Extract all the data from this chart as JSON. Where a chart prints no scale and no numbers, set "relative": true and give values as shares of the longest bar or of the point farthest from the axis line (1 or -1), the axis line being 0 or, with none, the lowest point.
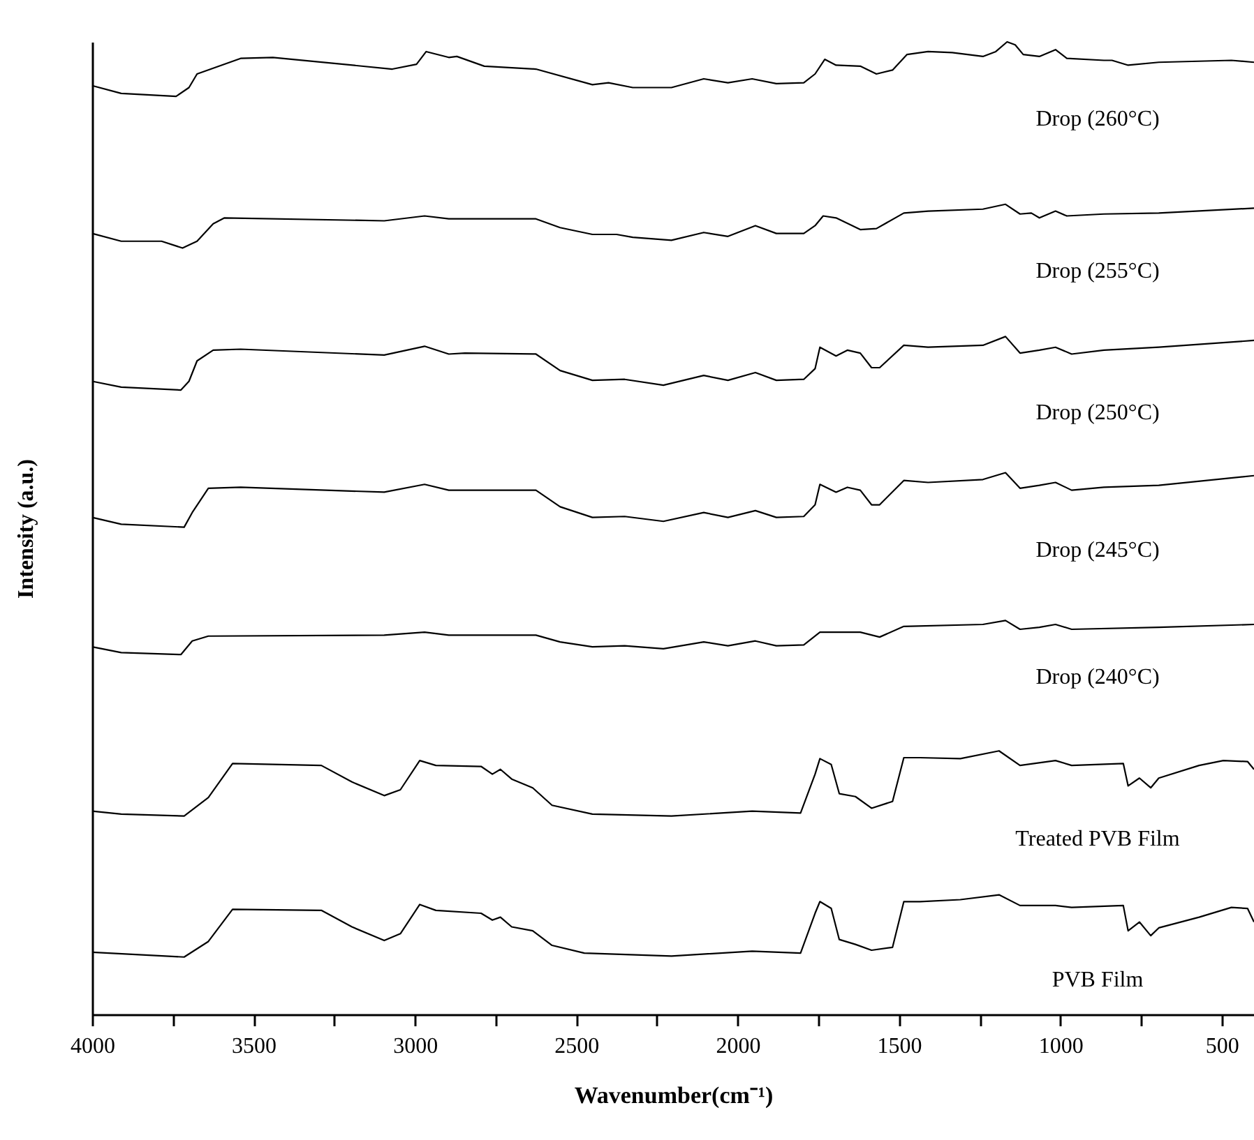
{
  "chart_data": {
    "type": "line",
    "xlabel": "Wavenumber(cm⁻¹)",
    "ylabel": "Intensity (a.u.)",
    "relative": true,
    "legend": false,
    "grid": false,
    "xlim": [
      4000,
      400
    ],
    "xticks": [
      4000,
      {
        "value": 3750,
        "label": null
      },
      3500,
      {
        "value": 3250,
        "label": null
      },
      3000,
      {
        "value": 2750,
        "label": null
      },
      2500,
      {
        "value": 2250,
        "label": null
      },
      2000,
      {
        "value": 1750,
        "label": null
      },
      1500,
      {
        "value": 1250,
        "label": null
      },
      1000,
      {
        "value": 750,
        "label": null
      },
      500
    ],
    "series": [
      {
        "name": "Drop (260°C)",
        "color": "#000000",
        "x": [
          4000,
          3910,
          3740,
          3700,
          3675,
          3540,
          3440,
          3070,
          2995,
          2965,
          2895,
          2870,
          2785,
          2625,
          2450,
          2400,
          2325,
          2205,
          2105,
          2030,
          1955,
          1880,
          1795,
          1760,
          1730,
          1695,
          1620,
          1570,
          1520,
          1475,
          1410,
          1335,
          1240,
          1200,
          1165,
          1140,
          1115,
          1065,
          1015,
          980,
          865,
          840,
          790,
          695,
          470,
          400
        ],
        "values": [
          0.955,
          0.947,
          0.944,
          0.953,
          0.967,
          0.983,
          0.984,
          0.972,
          0.977,
          0.99,
          0.984,
          0.985,
          0.975,
          0.972,
          0.956,
          0.958,
          0.953,
          0.953,
          0.962,
          0.958,
          0.962,
          0.957,
          0.958,
          0.967,
          0.982,
          0.976,
          0.975,
          0.967,
          0.971,
          0.987,
          0.99,
          0.989,
          0.985,
          0.99,
          1.0,
          0.997,
          0.987,
          0.985,
          0.992,
          0.983,
          0.981,
          0.981,
          0.976,
          0.979,
          0.981,
          0.979
        ]
      },
      {
        "name": "Drop (255°C)",
        "color": "#000000",
        "x": [
          4000,
          3910,
          3785,
          3720,
          3675,
          3625,
          3590,
          3095,
          2970,
          2895,
          2625,
          2550,
          2450,
          2375,
          2325,
          2205,
          2105,
          2030,
          1945,
          1880,
          1795,
          1760,
          1735,
          1695,
          1620,
          1570,
          1485,
          1410,
          1240,
          1170,
          1125,
          1090,
          1065,
          1015,
          980,
          865,
          695,
          400
        ],
        "values": [
          0.803,
          0.795,
          0.795,
          0.788,
          0.795,
          0.813,
          0.819,
          0.816,
          0.821,
          0.818,
          0.818,
          0.809,
          0.802,
          0.802,
          0.799,
          0.796,
          0.804,
          0.8,
          0.811,
          0.803,
          0.803,
          0.811,
          0.821,
          0.819,
          0.807,
          0.808,
          0.824,
          0.826,
          0.828,
          0.833,
          0.823,
          0.824,
          0.819,
          0.826,
          0.821,
          0.823,
          0.824,
          0.829
        ]
      },
      {
        "name": "Drop (250°C)",
        "color": "#000000",
        "x": [
          4000,
          3910,
          3725,
          3700,
          3675,
          3625,
          3540,
          3095,
          2970,
          2895,
          2845,
          2625,
          2550,
          2450,
          2350,
          2230,
          2105,
          2030,
          1945,
          1880,
          1795,
          1760,
          1745,
          1695,
          1660,
          1620,
          1585,
          1560,
          1485,
          1410,
          1240,
          1170,
          1125,
          1065,
          1015,
          965,
          865,
          695,
          400
        ],
        "values": [
          0.651,
          0.645,
          0.642,
          0.651,
          0.672,
          0.683,
          0.684,
          0.678,
          0.687,
          0.679,
          0.68,
          0.679,
          0.662,
          0.652,
          0.653,
          0.647,
          0.657,
          0.652,
          0.66,
          0.652,
          0.653,
          0.664,
          0.686,
          0.677,
          0.683,
          0.68,
          0.665,
          0.665,
          0.688,
          0.686,
          0.688,
          0.697,
          0.68,
          0.683,
          0.686,
          0.679,
          0.683,
          0.686,
          0.693
        ]
      },
      {
        "name": "Drop (245°C)",
        "color": "#000000",
        "x": [
          4000,
          3910,
          3715,
          3690,
          3640,
          3540,
          3095,
          2970,
          2895,
          2625,
          2550,
          2450,
          2350,
          2230,
          2105,
          2030,
          1945,
          1880,
          1795,
          1760,
          1745,
          1695,
          1660,
          1620,
          1585,
          1560,
          1485,
          1410,
          1240,
          1170,
          1125,
          1065,
          1015,
          965,
          865,
          695,
          400
        ],
        "values": [
          0.511,
          0.504,
          0.501,
          0.516,
          0.541,
          0.542,
          0.537,
          0.545,
          0.539,
          0.539,
          0.522,
          0.511,
          0.512,
          0.507,
          0.516,
          0.511,
          0.518,
          0.511,
          0.512,
          0.524,
          0.545,
          0.537,
          0.542,
          0.539,
          0.524,
          0.524,
          0.549,
          0.547,
          0.55,
          0.557,
          0.541,
          0.544,
          0.547,
          0.539,
          0.542,
          0.544,
          0.554
        ]
      },
      {
        "name": "Drop (240°C)",
        "color": "#000000",
        "x": [
          4000,
          3910,
          3725,
          3690,
          3640,
          3095,
          2970,
          2895,
          2625,
          2550,
          2450,
          2350,
          2230,
          2105,
          2030,
          1945,
          1880,
          1795,
          1745,
          1620,
          1560,
          1485,
          1240,
          1170,
          1125,
          1065,
          1015,
          965,
          695,
          400
        ],
        "values": [
          0.378,
          0.372,
          0.37,
          0.384,
          0.389,
          0.39,
          0.393,
          0.39,
          0.39,
          0.383,
          0.378,
          0.379,
          0.376,
          0.383,
          0.379,
          0.384,
          0.379,
          0.38,
          0.393,
          0.393,
          0.388,
          0.399,
          0.401,
          0.405,
          0.396,
          0.398,
          0.401,
          0.396,
          0.398,
          0.401
        ]
      },
      {
        "name": "Treated PVB Film",
        "color": "#000000",
        "x": [
          4000,
          3910,
          3715,
          3640,
          3565,
          3290,
          3195,
          3095,
          3045,
          2985,
          2935,
          2795,
          2760,
          2735,
          2700,
          2635,
          2575,
          2450,
          2205,
          1955,
          1805,
          1760,
          1745,
          1710,
          1685,
          1635,
          1585,
          1520,
          1485,
          1435,
          1310,
          1190,
          1125,
          1015,
          965,
          805,
          790,
          755,
          720,
          695,
          570,
          495,
          420,
          400
        ],
        "values": [
          0.209,
          0.206,
          0.204,
          0.223,
          0.258,
          0.256,
          0.239,
          0.225,
          0.231,
          0.261,
          0.256,
          0.255,
          0.247,
          0.252,
          0.242,
          0.233,
          0.215,
          0.206,
          0.204,
          0.209,
          0.207,
          0.247,
          0.263,
          0.257,
          0.227,
          0.224,
          0.212,
          0.219,
          0.264,
          0.264,
          0.263,
          0.271,
          0.256,
          0.261,
          0.256,
          0.258,
          0.235,
          0.243,
          0.233,
          0.243,
          0.256,
          0.261,
          0.26,
          0.252
        ]
      },
      {
        "name": "PVB Film",
        "color": "#000000",
        "x": [
          4000,
          3715,
          3640,
          3565,
          3290,
          3195,
          3095,
          3045,
          2985,
          2935,
          2795,
          2760,
          2735,
          2700,
          2635,
          2575,
          2475,
          2205,
          1955,
          1805,
          1760,
          1745,
          1710,
          1685,
          1635,
          1585,
          1520,
          1485,
          1435,
          1310,
          1190,
          1125,
          1015,
          965,
          805,
          790,
          755,
          720,
          695,
          570,
          470,
          420,
          400
        ],
        "values": [
          0.064,
          0.059,
          0.075,
          0.108,
          0.107,
          0.09,
          0.076,
          0.083,
          0.113,
          0.107,
          0.104,
          0.097,
          0.1,
          0.09,
          0.086,
          0.071,
          0.063,
          0.06,
          0.065,
          0.063,
          0.104,
          0.116,
          0.109,
          0.077,
          0.072,
          0.066,
          0.069,
          0.116,
          0.116,
          0.118,
          0.123,
          0.112,
          0.112,
          0.11,
          0.112,
          0.086,
          0.095,
          0.081,
          0.089,
          0.1,
          0.11,
          0.109,
          0.095
        ]
      }
    ]
  }
}
